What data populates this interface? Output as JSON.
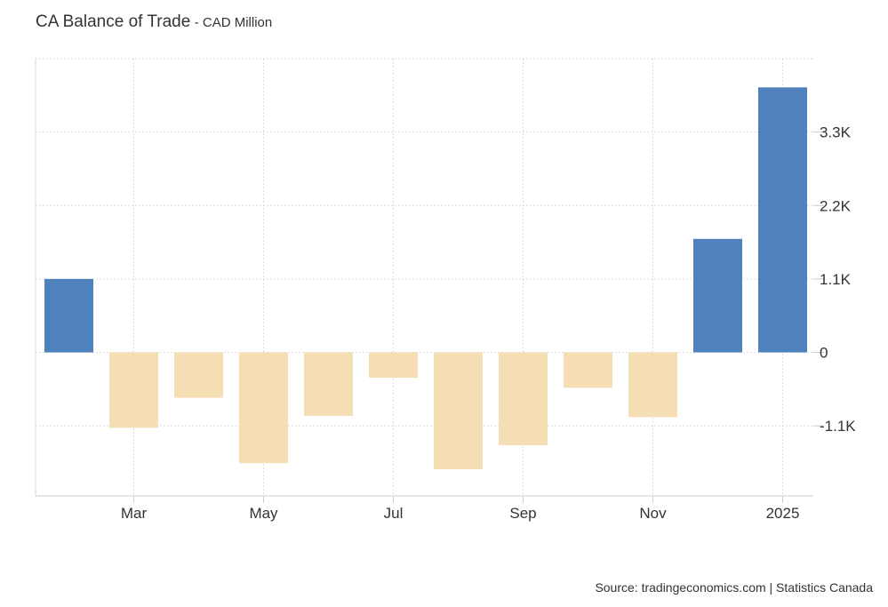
{
  "chart_data": {
    "type": "bar",
    "title": "CA Balance of Trade",
    "subtitle": "- CAD Million",
    "source": "Source: tradingeconomics.com | Statistics Canada",
    "xlabel": "",
    "ylabel": "",
    "categories": [
      "2024-02",
      "2024-03",
      "2024-04",
      "2024-05",
      "2024-06",
      "2024-07",
      "2024-08",
      "2024-09",
      "2024-10",
      "2024-11",
      "2024-12",
      "2025-01"
    ],
    "values": [
      1100,
      -1130,
      -680,
      -1660,
      -950,
      -380,
      -1750,
      -1390,
      -530,
      -970,
      1700,
      3970
    ],
    "x_tick_labels": [
      {
        "index": 1,
        "label": "Mar"
      },
      {
        "index": 3,
        "label": "May"
      },
      {
        "index": 5,
        "label": "Jul"
      },
      {
        "index": 7,
        "label": "Sep"
      },
      {
        "index": 9,
        "label": "Nov"
      },
      {
        "index": 11,
        "label": "2025"
      }
    ],
    "y_ticks": [
      {
        "value": 3300,
        "label": "3.3K"
      },
      {
        "value": 2200,
        "label": "2.2K"
      },
      {
        "value": 1100,
        "label": "1.1K"
      },
      {
        "value": 0,
        "label": "0"
      },
      {
        "value": -1100,
        "label": "-1.1K"
      }
    ],
    "ylim": [
      -2150,
      4400
    ],
    "y_axis_position": "right",
    "grid": true,
    "colors": {
      "positive": "#4f81bd",
      "negative": "#f5deb3"
    }
  }
}
